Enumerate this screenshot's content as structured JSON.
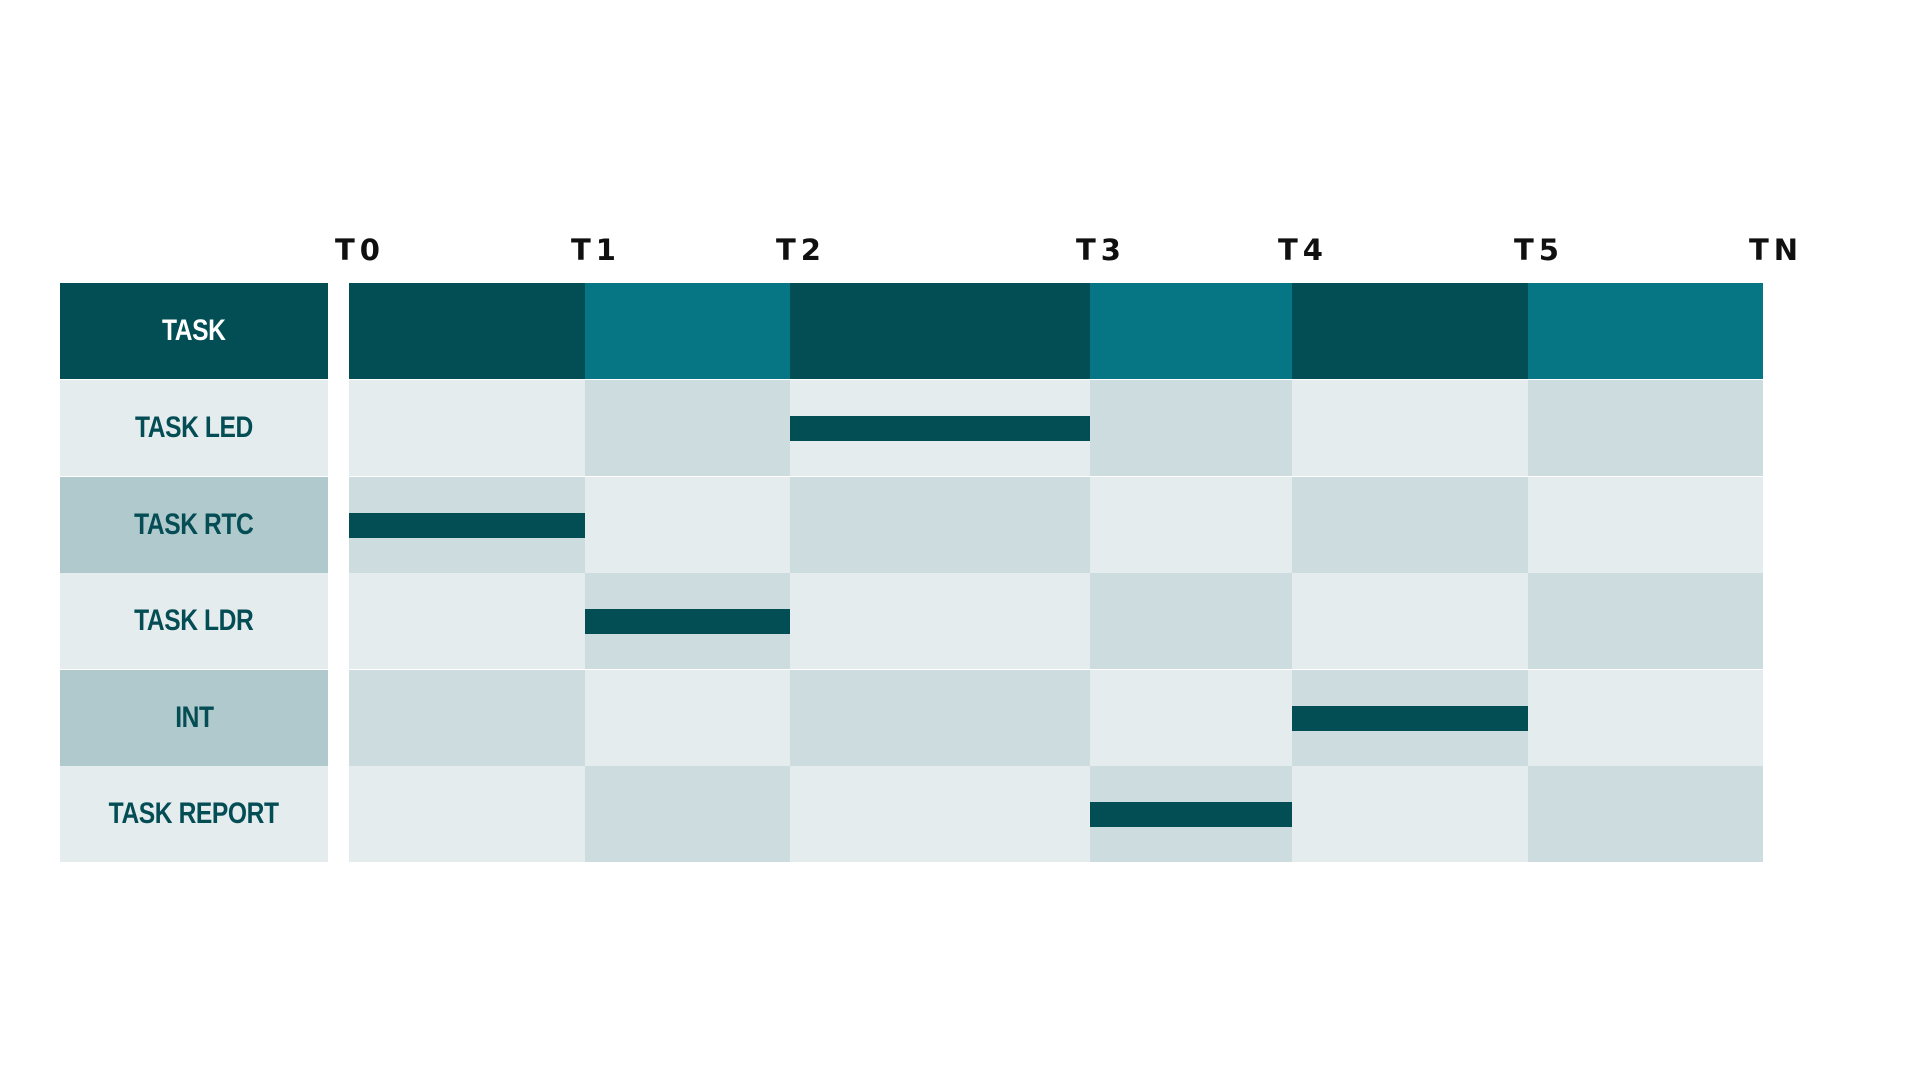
{
  "colors": {
    "header_dark": "#034d55",
    "header_teal": "#067684",
    "cell_light": "#e4ecee",
    "cell_mid": "#ccdcdf",
    "label_mid": "#b0c9cc",
    "bar": "#034d55",
    "label_text": "#044d55"
  },
  "time_ticks": [
    "T0",
    "T1",
    "T2",
    "T3",
    "T4",
    "T5",
    "TN"
  ],
  "header": {
    "label": "TASK"
  },
  "rows": [
    {
      "label": "TASK LED",
      "active_slot": [
        2,
        3
      ]
    },
    {
      "label": "TASK RTC",
      "active_slot": [
        0,
        1
      ]
    },
    {
      "label": "TASK LDR",
      "active_slot": [
        1,
        2
      ]
    },
    {
      "label": "INT",
      "active_slot": [
        4,
        5
      ]
    },
    {
      "label": "TASK REPORT",
      "active_slot": [
        3,
        4
      ]
    }
  ]
}
